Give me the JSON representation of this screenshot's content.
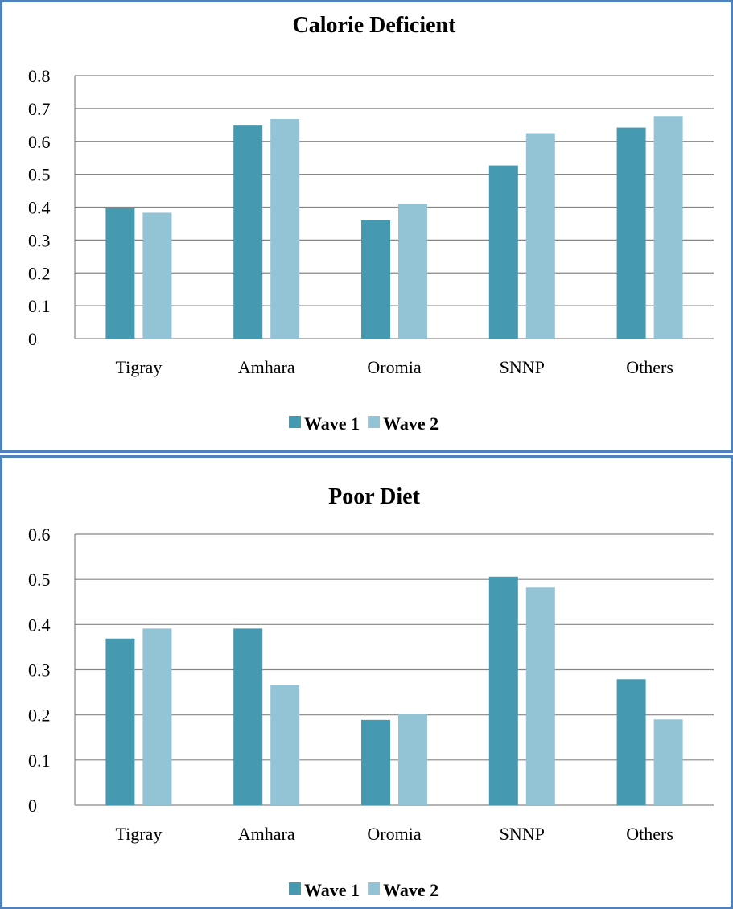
{
  "chart_data": [
    {
      "type": "bar",
      "title": "Calorie Deficient",
      "categories": [
        "Tigray",
        "Amhara",
        "Oromia",
        "SNNP",
        "Others"
      ],
      "series": [
        {
          "name": "Wave 1",
          "values": [
            0.397,
            0.648,
            0.36,
            0.527,
            0.642
          ]
        },
        {
          "name": "Wave 2",
          "values": [
            0.383,
            0.668,
            0.41,
            0.625,
            0.677
          ]
        }
      ],
      "yticks": [
        "0",
        "0.1",
        "0.2",
        "0.3",
        "0.4",
        "0.5",
        "0.6",
        "0.7",
        "0.8"
      ],
      "ylim": [
        0,
        0.8
      ],
      "grid": true,
      "legend_position": "bottom",
      "xlabel": "",
      "ylabel": ""
    },
    {
      "type": "bar",
      "title": "Poor Diet",
      "categories": [
        "Tigray",
        "Amhara",
        "Oromia",
        "SNNP",
        "Others"
      ],
      "series": [
        {
          "name": "Wave 1",
          "values": [
            0.369,
            0.391,
            0.189,
            0.506,
            0.279
          ]
        },
        {
          "name": "Wave 2",
          "values": [
            0.391,
            0.266,
            0.202,
            0.482,
            0.19
          ]
        }
      ],
      "yticks": [
        "0",
        "0.1",
        "0.2",
        "0.3",
        "0.4",
        "0.5",
        "0.6"
      ],
      "ylim": [
        0,
        0.6
      ],
      "grid": true,
      "legend_position": "bottom",
      "xlabel": "",
      "ylabel": ""
    }
  ],
  "colors": {
    "wave1": "#4599b0",
    "wave2": "#93c4d5",
    "border": "#4f81bd",
    "grid": "#868686"
  }
}
